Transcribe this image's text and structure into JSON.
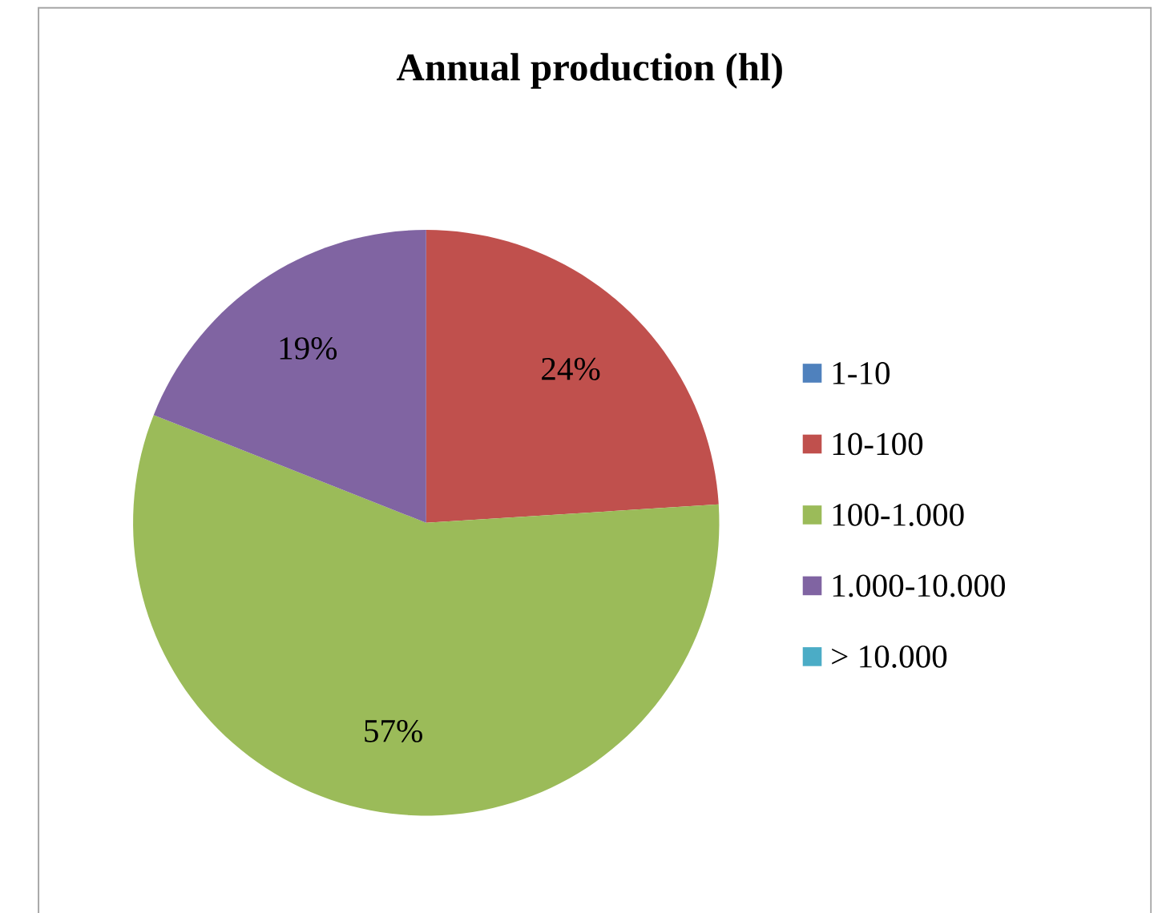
{
  "chart_data": {
    "type": "pie",
    "title": "Annual production (hl)",
    "categories": [
      "1-10",
      "10-100",
      "100-1.000",
      "1.000-10.000",
      "> 10.000"
    ],
    "values": [
      0,
      24,
      57,
      19,
      0
    ],
    "colors": [
      "#4f81bd",
      "#c0504d",
      "#9bbb59",
      "#8064a2",
      "#4bacc6"
    ],
    "value_labels": [
      null,
      "24%",
      "57%",
      "19%",
      null
    ],
    "legend": "right"
  }
}
